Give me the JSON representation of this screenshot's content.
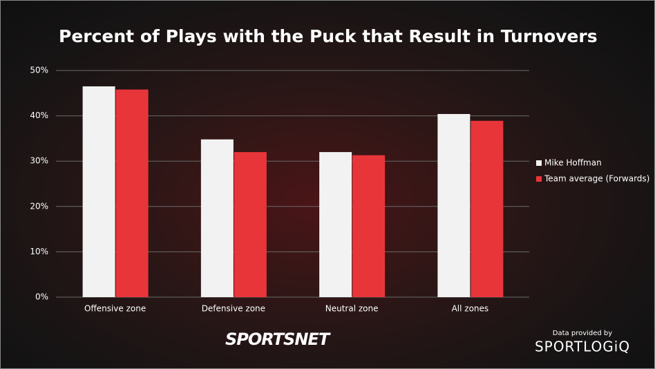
{
  "chart_data": {
    "type": "bar",
    "title": "Percent of Plays with the Puck that Result in Turnovers",
    "categories": [
      "Offensive zone",
      "Defensive zone",
      "Neutral zone",
      "All zones"
    ],
    "series": [
      {
        "name": "Mike Hoffman",
        "color": "#f2f2f2",
        "values": [
          46.5,
          34.8,
          32.0,
          40.4
        ]
      },
      {
        "name": "Team average (Forwards)",
        "color": "#e8353a",
        "values": [
          45.8,
          32.0,
          31.3,
          38.9
        ]
      }
    ],
    "ylim": [
      0,
      50
    ],
    "yticks": [
      {
        "value": 0,
        "label": "0%"
      },
      {
        "value": 10,
        "label": "10%"
      },
      {
        "value": 20,
        "label": "20%"
      },
      {
        "value": 30,
        "label": "30%"
      },
      {
        "value": 40,
        "label": "40%"
      },
      {
        "value": 50,
        "label": "50%"
      }
    ],
    "grid": true,
    "legend": "right"
  },
  "footer": {
    "brand": "SPORTSNET",
    "credit": "Data provided by",
    "provider": "SPORTLOGiQ"
  }
}
